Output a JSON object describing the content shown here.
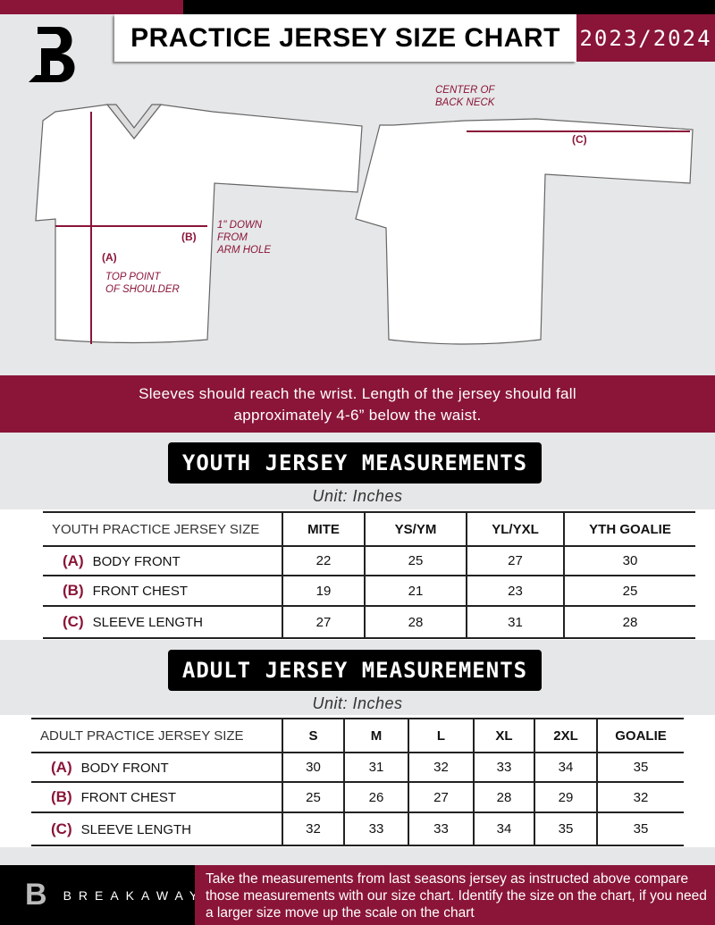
{
  "header": {
    "title": "PRACTICE JERSEY SIZE CHART",
    "season": "2023/2024"
  },
  "brand": {
    "name": "BREAKAWAY",
    "logo_letter": "B"
  },
  "diagram": {
    "label_a": "(A)",
    "label_b": "(B)",
    "label_c": "(C)",
    "top_point": "TOP POINT\nOF SHOULDER",
    "arm_hole": "1\" DOWN\nFROM\nARM HOLE",
    "back_neck": "CENTER OF\nBACK NECK"
  },
  "instruction": "Sleeves should reach the wrist. Length of the jersey should fall approximately 4-6” below the waist.",
  "youth": {
    "title": "YOUTH JERSEY MEASUREMENTS",
    "unit": "Unit: Inches",
    "headers": [
      "YOUTH PRACTICE JERSEY SIZE",
      "MITE",
      "YS/YM",
      "YL/YXL",
      "YTH GOALIE"
    ],
    "rows": [
      {
        "letter": "(A)",
        "label": "BODY FRONT",
        "values": [
          "22",
          "25",
          "27",
          "30"
        ]
      },
      {
        "letter": "(B)",
        "label": "FRONT CHEST",
        "values": [
          "19",
          "21",
          "23",
          "25"
        ]
      },
      {
        "letter": "(C)",
        "label": "SLEEVE LENGTH",
        "values": [
          "27",
          "28",
          "31",
          "28"
        ]
      }
    ]
  },
  "adult": {
    "title": "ADULT JERSEY MEASUREMENTS",
    "unit": "Unit: Inches",
    "headers": [
      "ADULT PRACTICE JERSEY SIZE",
      "S",
      "M",
      "L",
      "XL",
      "2XL",
      "GOALIE"
    ],
    "rows": [
      {
        "letter": "(A)",
        "label": "BODY FRONT",
        "values": [
          "30",
          "31",
          "32",
          "33",
          "34",
          "35"
        ]
      },
      {
        "letter": "(B)",
        "label": "FRONT CHEST",
        "values": [
          "25",
          "26",
          "27",
          "28",
          "29",
          "32"
        ]
      },
      {
        "letter": "(C)",
        "label": "SLEEVE LENGTH",
        "values": [
          "32",
          "33",
          "33",
          "34",
          "35",
          "35"
        ]
      }
    ]
  },
  "footer": {
    "text": "Take the measurements from last seasons jersey as instructed above compare those measurements  with our size chart. Identify the size on the chart, if you need a larger size move up the scale on the chart"
  },
  "colors": {
    "accent": "#8a1538",
    "background": "#e6e7e8"
  }
}
